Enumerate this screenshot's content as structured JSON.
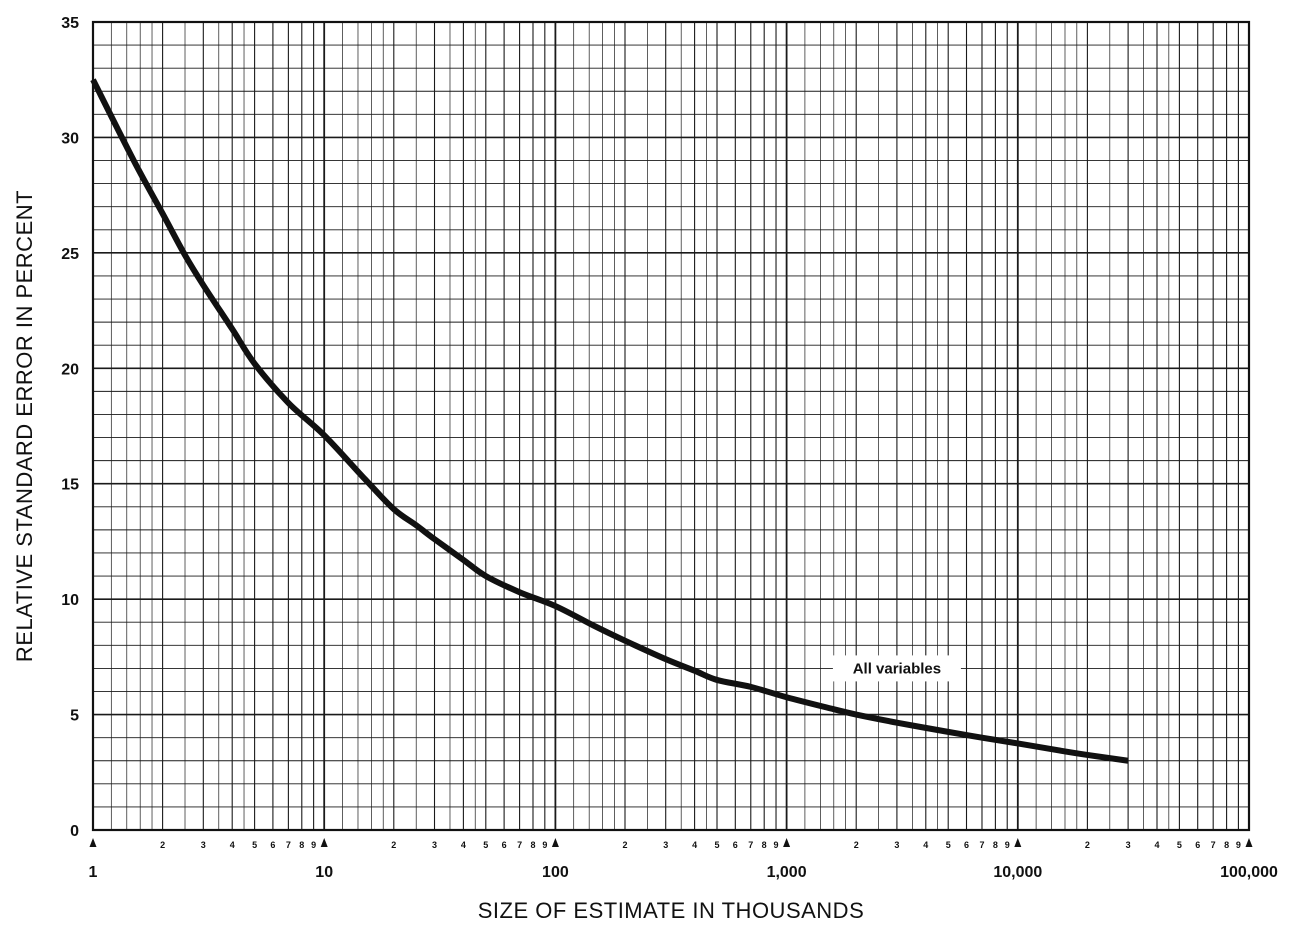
{
  "chart_data": {
    "type": "line",
    "title": "",
    "xlabel": "SIZE OF ESTIMATE IN THOUSANDS",
    "ylabel": "RELATIVE STANDARD ERROR IN PERCENT",
    "x_scale": "log",
    "xlim": [
      1,
      100000
    ],
    "ylim": [
      0,
      35
    ],
    "grid": true,
    "x_major_ticks": [
      {
        "value": 1,
        "label": "1"
      },
      {
        "value": 10,
        "label": "10"
      },
      {
        "value": 100,
        "label": "100"
      },
      {
        "value": 1000,
        "label": "1,000"
      },
      {
        "value": 10000,
        "label": "10,000"
      },
      {
        "value": 100000,
        "label": "100,000"
      }
    ],
    "x_minor_tick_labels": [
      "2",
      "3",
      "4",
      "5",
      "6",
      "7",
      "8",
      "9"
    ],
    "y_ticks": [
      {
        "value": 0,
        "label": "0"
      },
      {
        "value": 5,
        "label": "5"
      },
      {
        "value": 10,
        "label": "10"
      },
      {
        "value": 15,
        "label": "15"
      },
      {
        "value": 20,
        "label": "20"
      },
      {
        "value": 25,
        "label": "25"
      },
      {
        "value": 30,
        "label": "30"
      },
      {
        "value": 35,
        "label": "35"
      }
    ],
    "series": [
      {
        "name": "All variables",
        "color": "#111111",
        "x": [
          1,
          1.5,
          2,
          2.5,
          3,
          4,
          5,
          7,
          10,
          15,
          20,
          25,
          30,
          40,
          50,
          70,
          100,
          150,
          200,
          300,
          400,
          500,
          700,
          1000,
          1500,
          2000,
          3000,
          5000,
          7000,
          10000,
          15000,
          20000,
          30000
        ],
        "y": [
          32.5,
          29.0,
          26.7,
          24.9,
          23.6,
          21.7,
          20.2,
          18.5,
          17.1,
          15.2,
          13.9,
          13.2,
          12.6,
          11.7,
          11.0,
          10.3,
          9.7,
          8.8,
          8.2,
          7.4,
          6.9,
          6.5,
          6.2,
          5.75,
          5.3,
          5.0,
          4.65,
          4.25,
          4.0,
          3.75,
          3.45,
          3.25,
          3.0
        ]
      }
    ],
    "annotations": [
      {
        "text": "All variables",
        "x": 3000,
        "y": 7.0
      }
    ]
  }
}
